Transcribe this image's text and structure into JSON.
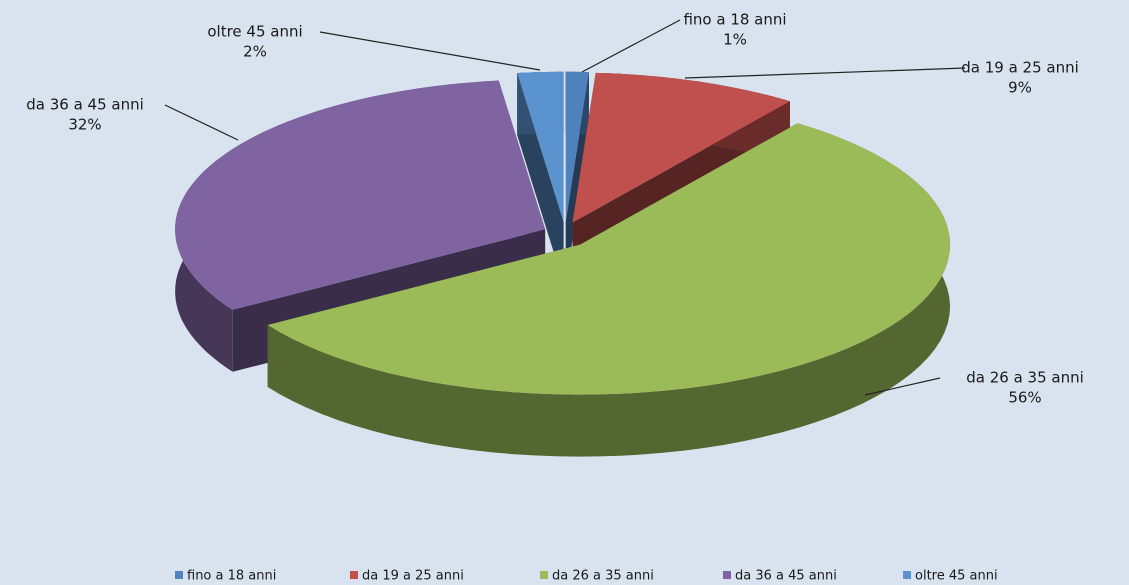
{
  "chart_data": {
    "type": "pie",
    "categories": [
      "fino a 18 anni",
      "da 19 a 25 anni",
      "da 26 a 35 anni",
      "da 36 a 45 anni",
      "oltre 45 anni"
    ],
    "values": [
      1,
      9,
      56,
      32,
      2
    ],
    "value_labels": [
      "1%",
      "9%",
      "56%",
      "32%",
      "2%"
    ],
    "colors": [
      "#4f81bd",
      "#c0504d",
      "#9bbb59",
      "#8064a2",
      "#5b93cf"
    ],
    "legend": "bottom"
  }
}
